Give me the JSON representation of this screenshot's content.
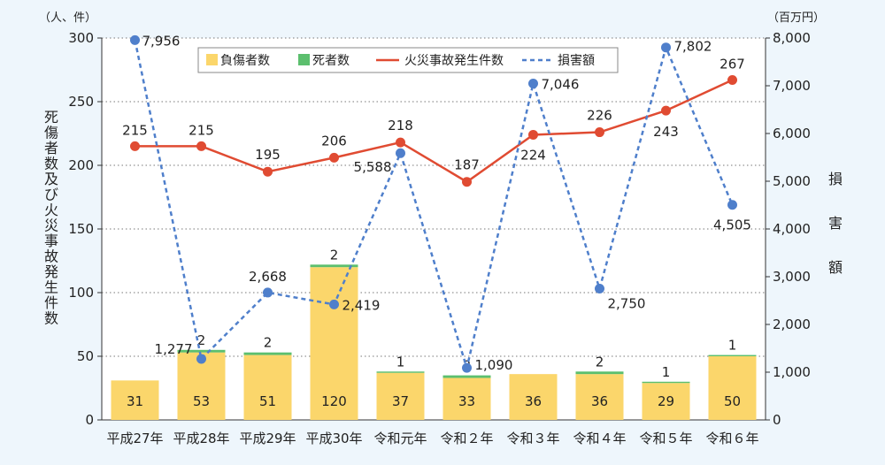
{
  "chart_data": {
    "type": "bar",
    "categories": [
      "平成27年",
      "平成28年",
      "平成29年",
      "平成30年",
      "令和元年",
      "令和２年",
      "令和３年",
      "令和４年",
      "令和５年",
      "令和６年"
    ],
    "series": [
      {
        "name": "負傷者数",
        "type": "bar",
        "axis": "left",
        "color": "#fbd66b",
        "values": [
          31,
          53,
          51,
          120,
          37,
          33,
          36,
          36,
          29,
          50
        ]
      },
      {
        "name": "死者数",
        "type": "bar",
        "axis": "left",
        "color": "#5cbf6e",
        "values": [
          0,
          2,
          2,
          2,
          1,
          2,
          0,
          2,
          1,
          1
        ]
      },
      {
        "name": "火災事故発生件数",
        "type": "line",
        "axis": "left",
        "color": "#e04b32",
        "values": [
          215,
          215,
          195,
          206,
          218,
          187,
          224,
          226,
          243,
          267
        ]
      },
      {
        "name": "損害額",
        "type": "line",
        "axis": "right",
        "style": "dashed",
        "color": "#4f7fcb",
        "values": [
          7956,
          1277,
          2668,
          2419,
          5588,
          1090,
          7046,
          2750,
          7802,
          4505
        ]
      }
    ],
    "bar_labels": [
      "31",
      "53",
      "51",
      "120",
      "37",
      "33",
      "36",
      "36",
      "29",
      "50"
    ],
    "death_labels": [
      "",
      "2",
      "2",
      "2",
      "1",
      "2",
      "",
      "2",
      "1",
      "1"
    ],
    "count_labels": [
      "215",
      "215",
      "195",
      "206",
      "218",
      "187",
      "224",
      "226",
      "243",
      "267"
    ],
    "damage_labels": [
      "7,956",
      "1,277",
      "2,668",
      "2,419",
      "5,588",
      "1,090",
      "7,046",
      "2,750",
      "7,802",
      "4,505"
    ],
    "ylim_left": [
      0,
      300
    ],
    "ylim_right": [
      0,
      8000
    ],
    "left_ticks": [
      "0",
      "50",
      "100",
      "150",
      "200",
      "250",
      "300"
    ],
    "right_ticks": [
      "0",
      "1,000",
      "2,000",
      "3,000",
      "4,000",
      "5,000",
      "6,000",
      "7,000",
      "8,000"
    ],
    "ylabel_left": "死傷者数及び火災事故発生件数",
    "ylabel_right": "損害額",
    "unit_left": "（人、件）",
    "unit_right": "（百万円）",
    "grid": true,
    "legend_position": "top"
  }
}
